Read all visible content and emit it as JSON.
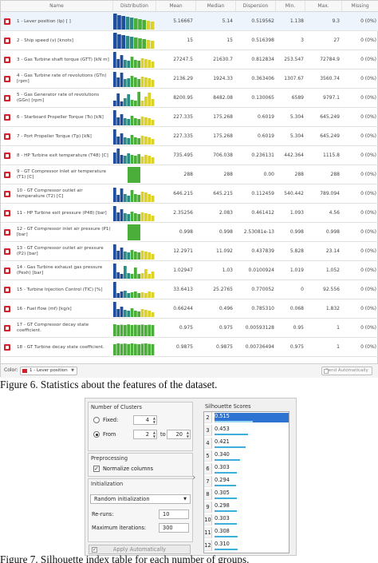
{
  "fig6": {
    "headers": {
      "name": "Name",
      "distribution": "Distribution",
      "mean": "Mean",
      "median": "Median",
      "dispersion": "Dispersion",
      "min": "Min.",
      "max": "Max.",
      "missing": "Missing"
    },
    "colors": {
      "blue": "#1f4e9c",
      "teal": "#2a8c84",
      "green": "#4cae3a",
      "yellow": "#dcd02a",
      "selected_row": "#eef4fb",
      "icon": "#d3212c"
    },
    "rows": [
      {
        "name": "1 - Lever position (lp) [ ]",
        "mean": "5.16667",
        "median": "5.14",
        "dispersion": "0.519562",
        "min": "1.138",
        "max": "9.3",
        "missing": "0 (0%)",
        "bars": [
          1,
          0.9,
          0.85,
          0.8,
          0.75,
          0.7,
          0.65,
          0.6,
          0.55,
          0.5
        ],
        "scheme": "bgy"
      },
      {
        "name": "2 - Ship speed (v) [knots]",
        "mean": "15",
        "median": "15",
        "dispersion": "0.516398",
        "min": "3",
        "max": "27",
        "missing": "0 (0%)",
        "bars": [
          1,
          0.9,
          0.85,
          0.8,
          0.75,
          0.7,
          0.65,
          0.6,
          0.55,
          0.5
        ],
        "scheme": "bgy"
      },
      {
        "name": "3 - Gas Turbine shaft torque (GTT) [kN m]",
        "mean": "27247.5",
        "median": "21630.7",
        "dispersion": "0.812834",
        "min": "253.547",
        "max": "72784.9",
        "missing": "0 (0%)",
        "bars": [
          1,
          0.55,
          0.8,
          0.5,
          0.45,
          0.7,
          0.5,
          0.45,
          0.6,
          0.55,
          0.5,
          0.4
        ],
        "scheme": "bgy"
      },
      {
        "name": "4 - Gas Turbine rate of revolutions (GTn) [rpm]",
        "mean": "2136.29",
        "median": "1924.33",
        "dispersion": "0.363406",
        "min": "1307.67",
        "max": "3560.74",
        "missing": "0 (0%)",
        "bars": [
          0.95,
          0.6,
          0.9,
          0.5,
          0.55,
          0.7,
          0.6,
          0.5,
          0.65,
          0.6,
          0.55,
          0.45
        ],
        "scheme": "bgy"
      },
      {
        "name": "5 - Gas Generator rate of revolutions (GGn) [rpm]",
        "mean": "8200.95",
        "median": "8482.08",
        "dispersion": "0.130065",
        "min": "6589",
        "max": "9797.1",
        "missing": "0 (0%)",
        "bars": [
          0.35,
          0.8,
          0.3,
          0.5,
          0.75,
          0.4,
          0.35,
          0.9,
          0.35,
          0.6,
          0.85,
          0.45
        ],
        "scheme": "bgy"
      },
      {
        "name": "6 - Starboard Propeller Torque (Ts) [kN]",
        "mean": "227.335",
        "median": "175.268",
        "dispersion": "0.6019",
        "min": "5.304",
        "max": "645.249",
        "missing": "0 (0%)",
        "bars": [
          0.95,
          0.5,
          0.7,
          0.45,
          0.4,
          0.6,
          0.45,
          0.4,
          0.55,
          0.5,
          0.45,
          0.35
        ],
        "scheme": "bgy"
      },
      {
        "name": "7 - Port Propeller Torque (Tp) [kN]",
        "mean": "227.335",
        "median": "175.268",
        "dispersion": "0.6019",
        "min": "5.304",
        "max": "645.249",
        "missing": "0 (0%)",
        "bars": [
          0.95,
          0.5,
          0.7,
          0.45,
          0.4,
          0.6,
          0.45,
          0.4,
          0.55,
          0.5,
          0.45,
          0.35
        ],
        "scheme": "bgy"
      },
      {
        "name": "8 - HP Turbine exit temperature (T48) [C]",
        "mean": "735.495",
        "median": "706.038",
        "dispersion": "0.236131",
        "min": "442.364",
        "max": "1115.8",
        "missing": "0 (0%)",
        "bars": [
          0.7,
          0.95,
          0.55,
          0.5,
          0.65,
          0.55,
          0.5,
          0.6,
          0.45,
          0.55,
          0.5,
          0.4
        ],
        "scheme": "bgy"
      },
      {
        "name": "9 - GT Compressor inlet air temperature (T1) [C]",
        "mean": "288",
        "median": "288",
        "dispersion": "0.00",
        "min": "288",
        "max": "288",
        "missing": "0 (0%)",
        "bars": [
          1
        ],
        "scheme": "single"
      },
      {
        "name": "10 - GT Compressor outlet air temperature (T2) [C]",
        "mean": "646.215",
        "median": "645.215",
        "dispersion": "0.112459",
        "min": "540.442",
        "max": "789.094",
        "missing": "0 (0%)",
        "bars": [
          0.9,
          0.45,
          0.85,
          0.5,
          0.4,
          0.75,
          0.5,
          0.45,
          0.65,
          0.6,
          0.5,
          0.4
        ],
        "scheme": "bgy"
      },
      {
        "name": "11 - HP Turbine exit pressure (P48) [bar]",
        "mean": "2.35256",
        "median": "2.083",
        "dispersion": "0.461412",
        "min": "1.093",
        "max": "4.56",
        "missing": "0 (0%)",
        "bars": [
          0.95,
          0.55,
          0.75,
          0.5,
          0.45,
          0.6,
          0.5,
          0.45,
          0.55,
          0.5,
          0.45,
          0.35
        ],
        "scheme": "bgy"
      },
      {
        "name": "12 - GT Compressor inlet air pressure (P1) [bar]",
        "mean": "0.998",
        "median": "0.998",
        "dispersion": "2.53081e-13",
        "min": "0.998",
        "max": "0.998",
        "missing": "0 (0%)",
        "bars": [
          1
        ],
        "scheme": "single"
      },
      {
        "name": "13 - GT Compressor outlet air pressure (P2) [bar]",
        "mean": "12.2971",
        "median": "11.092",
        "dispersion": "0.437839",
        "min": "5.828",
        "max": "23.14",
        "missing": "0 (0%)",
        "bars": [
          0.95,
          0.55,
          0.75,
          0.5,
          0.45,
          0.6,
          0.5,
          0.45,
          0.55,
          0.5,
          0.45,
          0.35
        ],
        "scheme": "bgy"
      },
      {
        "name": "14 - Gas Turbine exhaust gas pressure (Pexh) [bar]",
        "mean": "1.02947",
        "median": "1.03",
        "dispersion": "0.0100924",
        "min": "1.019",
        "max": "1.052",
        "missing": "0 (0%)",
        "bars": [
          0.95,
          0.4,
          0.3,
          0.8,
          0.35,
          0.3,
          0.7,
          0.3,
          0.35,
          0.6,
          0.3,
          0.45
        ],
        "scheme": "bgy"
      },
      {
        "name": "15 - Turbine Injection Control (TIC) [%]",
        "mean": "33.6413",
        "median": "25.2765",
        "dispersion": "0.770052",
        "min": "0",
        "max": "92.556",
        "missing": "0 (0%)",
        "bars": [
          1,
          0.3,
          0.4,
          0.45,
          0.3,
          0.35,
          0.4,
          0.3,
          0.35,
          0.3,
          0.4,
          0.35
        ],
        "scheme": "bgy"
      },
      {
        "name": "16 - Fuel flow (mf) [kg/s]",
        "mean": "0.66244",
        "median": "0.496",
        "dispersion": "0.785310",
        "min": "0.068",
        "max": "1.832",
        "missing": "0 (0%)",
        "bars": [
          0.95,
          0.5,
          0.65,
          0.45,
          0.4,
          0.55,
          0.4,
          0.35,
          0.5,
          0.45,
          0.4,
          0.3
        ],
        "scheme": "bgy"
      },
      {
        "name": "17 - GT Compressor decay state coefficient.",
        "mean": "0.975",
        "median": "0.975",
        "dispersion": "0.00593128",
        "min": "0.95",
        "max": "1",
        "missing": "0 (0%)",
        "bars": [
          0.75,
          0.7,
          0.72,
          0.7,
          0.74,
          0.7,
          0.72,
          0.71,
          0.73,
          0.7,
          0.72,
          0.7
        ],
        "scheme": "green"
      },
      {
        "name": "18 - GT Turbine decay state coefficient.",
        "mean": "0.9875",
        "median": "0.9875",
        "dispersion": "0.00736494",
        "min": "0.975",
        "max": "1",
        "missing": "0 (0%)",
        "bars": [
          0.7,
          0.75,
          0.72,
          0.74,
          0.71,
          0.75,
          0.72,
          0.7,
          0.73,
          0.75,
          0.72,
          0.7
        ],
        "scheme": "green"
      }
    ],
    "footer": {
      "color_label": "Color:",
      "color_value": "1 - Lever position",
      "send_auto": "Send Automatically"
    }
  },
  "caption6": "Figure 6. Statistics about the features of the dataset.",
  "fig7": {
    "clusters_title": "Number of Clusters",
    "fixed_label": "Fixed:",
    "fixed_value": "4",
    "from_label": "From",
    "from_value": "2",
    "to_label": "to",
    "to_value": "20",
    "preprocessing_title": "Preprocessing",
    "normalize_label": "Normalize columns",
    "initialization_title": "Initialization",
    "init_method": "Random initialization",
    "reruns_label": "Re-runs:",
    "reruns_value": "10",
    "maxiter_label": "Maximum iterations:",
    "maxiter_value": "300",
    "apply_label": "Apply Automatically",
    "silhouette_title": "Silhouette Scores",
    "scores": [
      {
        "k": "2",
        "score": "0.515",
        "value": 0.515
      },
      {
        "k": "3",
        "score": "0.453",
        "value": 0.453
      },
      {
        "k": "4",
        "score": "0.421",
        "value": 0.421
      },
      {
        "k": "5",
        "score": "0.340",
        "value": 0.34
      },
      {
        "k": "6",
        "score": "0.303",
        "value": 0.303
      },
      {
        "k": "7",
        "score": "0.294",
        "value": 0.294
      },
      {
        "k": "8",
        "score": "0.305",
        "value": 0.305
      },
      {
        "k": "9",
        "score": "0.298",
        "value": 0.298
      },
      {
        "k": "10",
        "score": "0.303",
        "value": 0.303
      },
      {
        "k": "11",
        "score": "0.308",
        "value": 0.308
      },
      {
        "k": "12",
        "score": "0.310",
        "value": 0.31
      }
    ],
    "bar_color": "#3db0e0",
    "selected_color": "#2d73d1"
  },
  "caption7": "Figure 7. Silhouette index table for each number of groups."
}
